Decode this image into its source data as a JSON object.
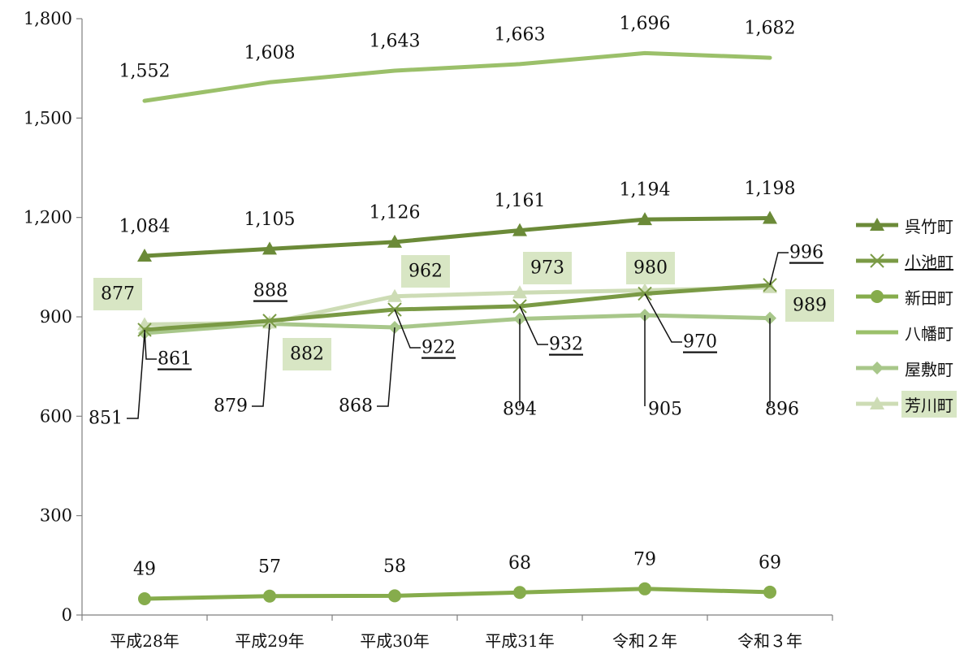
{
  "chart_data": {
    "type": "line",
    "categories": [
      "平成28年",
      "平成29年",
      "平成30年",
      "平成31年",
      "令和２年",
      "令和３年"
    ],
    "yticks": [
      "0",
      "300",
      "600",
      "900",
      "1,200",
      "1,500",
      "1,800"
    ],
    "ylim": [
      0,
      1800
    ],
    "grid": false,
    "legend_position": "right",
    "series": [
      {
        "name": "呉竹町",
        "values": [
          1084,
          1105,
          1126,
          1161,
          1194,
          1198
        ],
        "labels": [
          "1,084",
          "1,105",
          "1,126",
          "1,161",
          "1,194",
          "1,198"
        ],
        "color": "#6b8a38",
        "marker": "triangle"
      },
      {
        "name": "小池町",
        "values": [
          861,
          888,
          922,
          932,
          970,
          996
        ],
        "labels": [
          "861",
          "888",
          "922",
          "932",
          "970",
          "996"
        ],
        "color": "#7a9a45",
        "marker": "x"
      },
      {
        "name": "新田町",
        "values": [
          49,
          57,
          58,
          68,
          79,
          69
        ],
        "labels": [
          "49",
          "57",
          "58",
          "68",
          "79",
          "69"
        ],
        "color": "#86ac4c",
        "marker": "circle"
      },
      {
        "name": "八幡町",
        "values": [
          1552,
          1608,
          1643,
          1663,
          1696,
          1682
        ],
        "labels": [
          "1,552",
          "1,608",
          "1,643",
          "1,663",
          "1,696",
          "1,682"
        ],
        "color": "#9bc06a",
        "marker": "none"
      },
      {
        "name": "屋敷町",
        "values": [
          851,
          879,
          868,
          894,
          905,
          896
        ],
        "labels": [
          "851",
          "879",
          "868",
          "894",
          "905",
          "896"
        ],
        "color": "#a8c78a",
        "marker": "diamond"
      },
      {
        "name": "芳川町",
        "values": [
          877,
          882,
          962,
          973,
          980,
          989
        ],
        "labels": [
          "877",
          "882",
          "962",
          "973",
          "980",
          "989"
        ],
        "color": "#cddcb5",
        "marker": "triangle"
      }
    ]
  }
}
